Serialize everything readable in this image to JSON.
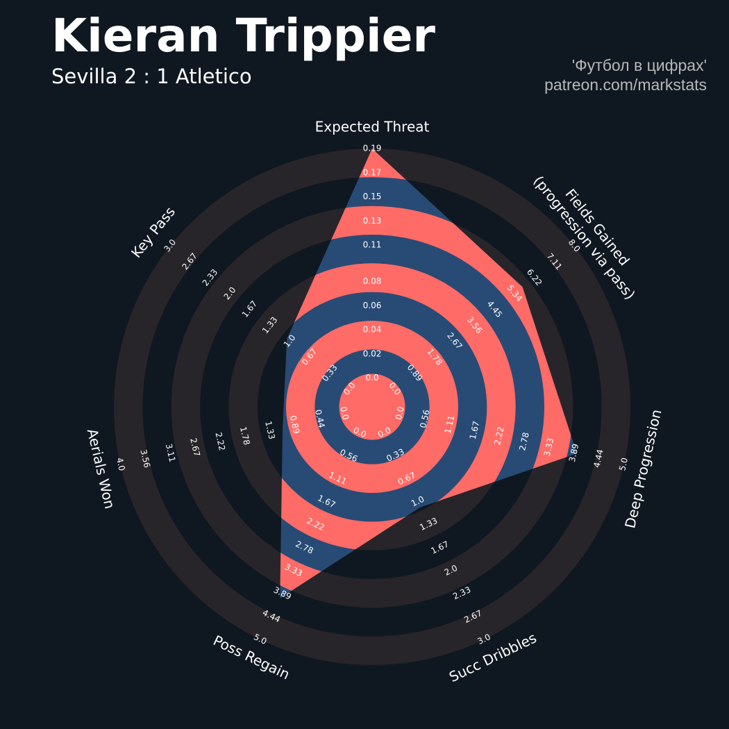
{
  "chart_data": {
    "type": "radar",
    "title": "Kieran Trippier",
    "subtitle": "Sevilla 2 : 1 Atletico",
    "credits": [
      "'Футбол в цифрах'",
      "patreon.com/markstats"
    ],
    "categories": [
      "Expected Threat",
      "Fields Gained\n(progression via pass)",
      "Deep Progression",
      "Succ Dribbles",
      "Poss Regain",
      "Aerials Won",
      "Key Pass"
    ],
    "values": [
      0.19,
      5.7,
      3.95,
      1.08,
      4.0,
      1.1,
      1.05
    ],
    "color": "#284b75",
    "ring_color": "#ff6b66",
    "background_ring_color": "#28252a",
    "axes": [
      {
        "lim": [
          0,
          0.19
        ],
        "ticks": [
          {
            "value": 0,
            "label": "0.0"
          },
          0.02,
          0.04,
          0.06,
          0.08,
          0.11,
          0.13,
          0.15,
          0.17,
          0.19
        ]
      },
      {
        "lim": [
          0,
          8
        ],
        "ticks": [
          {
            "value": 0,
            "label": "0.0"
          },
          0.89,
          1.78,
          2.67,
          3.56,
          4.45,
          5.34,
          6.22,
          7.11,
          {
            "value": 8,
            "label": "8.0"
          }
        ]
      },
      {
        "lim": [
          0,
          5
        ],
        "ticks": [
          {
            "value": 0,
            "label": "0.0"
          },
          0.56,
          1.11,
          1.67,
          2.22,
          2.78,
          3.33,
          3.89,
          4.44,
          {
            "value": 5,
            "label": "5.0"
          }
        ]
      },
      {
        "lim": [
          0,
          3
        ],
        "ticks": [
          {
            "value": 0,
            "label": "0.0"
          },
          0.33,
          0.67,
          {
            "value": 1,
            "label": "1.0"
          },
          1.33,
          1.67,
          {
            "value": 2,
            "label": "2.0"
          },
          2.33,
          2.67,
          {
            "value": 3,
            "label": "3.0"
          }
        ]
      },
      {
        "lim": [
          0,
          5
        ],
        "ticks": [
          {
            "value": 0,
            "label": "0.0"
          },
          0.56,
          1.11,
          1.67,
          2.22,
          2.78,
          3.33,
          3.89,
          4.44,
          {
            "value": 5,
            "label": "5.0"
          }
        ]
      },
      {
        "lim": [
          0,
          4
        ],
        "ticks": [
          {
            "value": 0,
            "label": "0.0"
          },
          0.44,
          0.89,
          1.33,
          1.78,
          2.22,
          2.67,
          3.11,
          3.56,
          {
            "value": 4,
            "label": "4.0"
          }
        ]
      },
      {
        "lim": [
          0,
          3
        ],
        "ticks": [
          {
            "value": 0,
            "label": "0.0"
          },
          0.33,
          0.67,
          {
            "value": 1,
            "label": "1.0"
          },
          1.33,
          1.67,
          {
            "value": 2,
            "label": "2.0"
          },
          2.33,
          2.67,
          {
            "value": 3,
            "label": "3.0"
          }
        ]
      }
    ]
  }
}
